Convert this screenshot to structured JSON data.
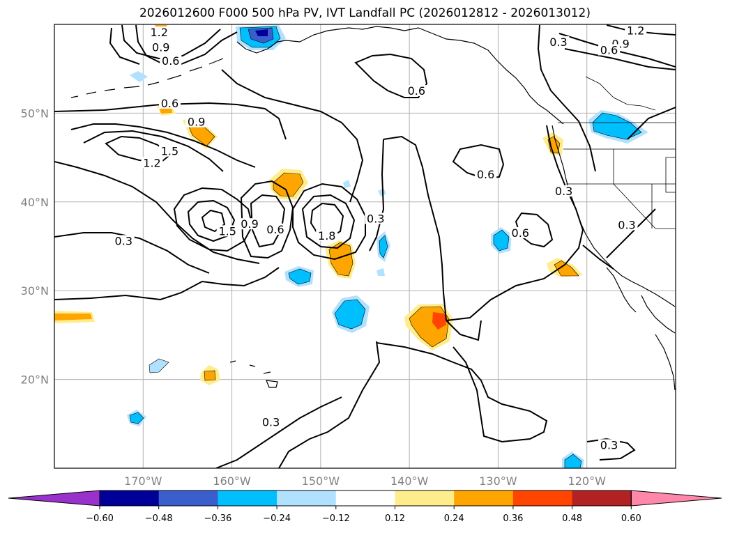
{
  "title": "2026012600 F000 500 hPa PV, IVT Landfall PC (2026012812 - 2026013012)",
  "map": {
    "lon_range": [
      -180,
      -110
    ],
    "lat_range": [
      10,
      60
    ],
    "lat_ticks": [
      {
        "lat": 50,
        "label": "50°N"
      },
      {
        "lat": 40,
        "label": "40°N"
      },
      {
        "lat": 30,
        "label": "30°N"
      },
      {
        "lat": 20,
        "label": "20°N"
      }
    ],
    "lon_ticks": [
      {
        "lon": -170,
        "label": "170°W"
      },
      {
        "lon": -160,
        "label": "160°W"
      },
      {
        "lon": -150,
        "label": "150°W"
      },
      {
        "lon": -140,
        "label": "140°W"
      },
      {
        "lon": -130,
        "label": "130°W"
      },
      {
        "lon": -120,
        "label": "120°W"
      }
    ],
    "grid": true,
    "contour_line_color": "#000000"
  },
  "contour_labels": [
    {
      "text": "1.2",
      "lon": -168.2,
      "lat": 58.9
    },
    {
      "text": "0.9",
      "lon": -168.0,
      "lat": 57.2
    },
    {
      "text": "0.6",
      "lon": -166.9,
      "lat": 55.7
    },
    {
      "text": "1.2",
      "lon": -114.5,
      "lat": 59.1
    },
    {
      "text": "0.9",
      "lon": -116.2,
      "lat": 57.6
    },
    {
      "text": "0.6",
      "lon": -117.5,
      "lat": 56.9
    },
    {
      "text": "0.3",
      "lon": -123.2,
      "lat": 57.8
    },
    {
      "text": "0.6",
      "lon": -139.2,
      "lat": 52.3
    },
    {
      "text": "0.6",
      "lon": -167.0,
      "lat": 50.9
    },
    {
      "text": "0.9",
      "lon": -164.0,
      "lat": 48.8
    },
    {
      "text": "1.5",
      "lon": -167.0,
      "lat": 45.5
    },
    {
      "text": "1.2",
      "lon": -169.0,
      "lat": 44.2
    },
    {
      "text": "0.6",
      "lon": -131.4,
      "lat": 42.9
    },
    {
      "text": "0.3",
      "lon": -122.6,
      "lat": 41.0
    },
    {
      "text": "0.3",
      "lon": -143.8,
      "lat": 37.9
    },
    {
      "text": "1.5",
      "lon": -160.5,
      "lat": 36.5
    },
    {
      "text": "0.9",
      "lon": -158.0,
      "lat": 37.3
    },
    {
      "text": "0.6",
      "lon": -155.1,
      "lat": 36.7
    },
    {
      "text": "1.8",
      "lon": -149.3,
      "lat": 36.0
    },
    {
      "text": "0.6",
      "lon": -127.5,
      "lat": 36.3
    },
    {
      "text": "0.3",
      "lon": -115.5,
      "lat": 37.2
    },
    {
      "text": "0.3",
      "lon": -172.2,
      "lat": 35.4
    },
    {
      "text": "0.3",
      "lon": -155.6,
      "lat": 15.0
    },
    {
      "text": "0.3",
      "lon": -117.5,
      "lat": 12.4
    }
  ],
  "legend": {
    "ticks": [
      "−0.60",
      "−0.48",
      "−0.36",
      "−0.24",
      "−0.12",
      "0.12",
      "0.24",
      "0.36",
      "0.48",
      "0.60"
    ],
    "colors": {
      "below": "#9932cc",
      "bins": [
        "#000099",
        "#3a5fcd",
        "#00bfff",
        "#b0e2ff",
        "#ffffff",
        "#ffec8b",
        "#ffa500",
        "#ff4500",
        "#b22222"
      ],
      "above": "#ff88aa"
    }
  }
}
